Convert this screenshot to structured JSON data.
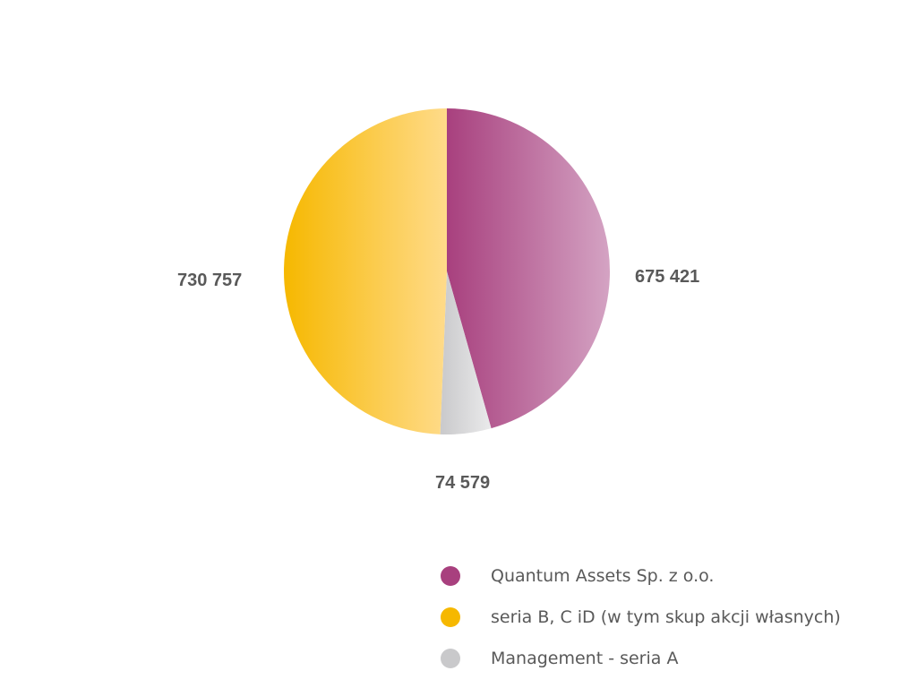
{
  "chart_data": {
    "type": "pie",
    "title": "",
    "slices": [
      {
        "name": "Quantum Assets Sp. z o.o.",
        "value": 675421,
        "label": "675 421",
        "color": "#A8407E",
        "color_light": "#D4A3C3"
      },
      {
        "name": "Management - seria A",
        "value": 74579,
        "label": "74 579",
        "color": "#C9C9CB",
        "color_light": "#EAEAEB"
      },
      {
        "name": "seria B, C iD (w tym skup akcji własnych)",
        "value": 730757,
        "label": "730 757",
        "color": "#F6B800",
        "color_light": "#FFDB8A"
      }
    ],
    "legend": {
      "placement": "bottom-right",
      "items": [
        {
          "label": "Quantum Assets Sp. z o.o.",
          "color": "#A8407E"
        },
        {
          "label": "seria B, C iD (w tym skup akcji własnych)",
          "color": "#F6B800"
        },
        {
          "label": "Management - seria A",
          "color": "#C9C9CB"
        }
      ]
    }
  }
}
